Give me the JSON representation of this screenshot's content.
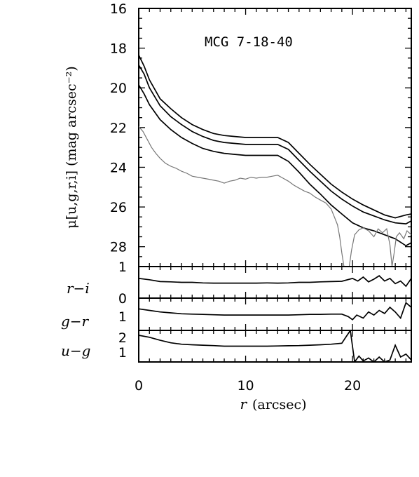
{
  "chart_data": [
    {
      "type": "line",
      "title": "MCG 7-18-40",
      "ylabel": "μ[u,g,r,i] (mag arcsec⁻²)",
      "xlim": [
        0,
        25.5
      ],
      "ylim": [
        16,
        29
      ],
      "y_inverted": true,
      "yticks": [
        16,
        18,
        20,
        22,
        24,
        26,
        28
      ],
      "ytick_labels": [
        "16",
        "18",
        "20",
        "22",
        "24",
        "26",
        "28"
      ],
      "series": [
        {
          "color": "#000000",
          "x": [
            0,
            0.5,
            1,
            2,
            3,
            4,
            5,
            6,
            7,
            8,
            9,
            10,
            11,
            12,
            13,
            14,
            15,
            16,
            17,
            18,
            19,
            20,
            21,
            22,
            23,
            24,
            25,
            25.5
          ],
          "y": [
            18.35,
            18.9,
            19.6,
            20.55,
            21.05,
            21.5,
            21.85,
            22.1,
            22.3,
            22.4,
            22.45,
            22.5,
            22.5,
            22.5,
            22.5,
            22.75,
            23.3,
            23.85,
            24.35,
            24.85,
            25.25,
            25.6,
            25.9,
            26.15,
            26.4,
            26.55,
            26.4,
            26.35
          ]
        },
        {
          "color": "#000000",
          "x": [
            0,
            0.5,
            1,
            2,
            3,
            4,
            5,
            6,
            7,
            8,
            9,
            10,
            11,
            12,
            13,
            14,
            15,
            16,
            17,
            18,
            19,
            20,
            21,
            22,
            23,
            24,
            25,
            25.5
          ],
          "y": [
            18.85,
            19.3,
            20.0,
            20.9,
            21.45,
            21.85,
            22.2,
            22.45,
            22.65,
            22.75,
            22.8,
            22.85,
            22.85,
            22.85,
            22.85,
            23.1,
            23.65,
            24.2,
            24.7,
            25.2,
            25.6,
            25.95,
            26.25,
            26.45,
            26.65,
            26.8,
            26.85,
            26.7
          ]
        },
        {
          "color": "#000000",
          "x": [
            0,
            0.5,
            1,
            2,
            3,
            4,
            5,
            6,
            7,
            8,
            9,
            10,
            11,
            12,
            13,
            14,
            15,
            16,
            17,
            18,
            19,
            20,
            21,
            22,
            23,
            24,
            25,
            25.5
          ],
          "y": [
            19.85,
            20.3,
            20.85,
            21.6,
            22.1,
            22.5,
            22.8,
            23.05,
            23.2,
            23.3,
            23.35,
            23.4,
            23.4,
            23.4,
            23.4,
            23.7,
            24.25,
            24.85,
            25.35,
            25.9,
            26.35,
            26.8,
            27.05,
            27.2,
            27.4,
            27.6,
            27.95,
            27.8
          ]
        },
        {
          "color": "#777777",
          "x": [
            0,
            0.4,
            0.8,
            1.2,
            1.6,
            2,
            2.5,
            3,
            3.5,
            4,
            4.5,
            5,
            5.5,
            6,
            6.5,
            7,
            7.5,
            8,
            8.5,
            9,
            9.5,
            10,
            10.5,
            11,
            11.5,
            12,
            12.5,
            13,
            13.5,
            14,
            14.5,
            15,
            15.5,
            16,
            16.5,
            17,
            17.5,
            18,
            18.3,
            18.6,
            18.8,
            19.0,
            19.2
          ],
          "y": [
            21.95,
            22.2,
            22.6,
            23.0,
            23.3,
            23.55,
            23.8,
            23.95,
            24.05,
            24.2,
            24.3,
            24.45,
            24.5,
            24.55,
            24.6,
            24.65,
            24.7,
            24.8,
            24.7,
            24.65,
            24.55,
            24.6,
            24.5,
            24.55,
            24.5,
            24.5,
            24.45,
            24.4,
            24.55,
            24.7,
            24.9,
            25.05,
            25.2,
            25.3,
            25.5,
            25.65,
            25.8,
            26.1,
            26.5,
            26.9,
            27.5,
            28.3,
            29
          ]
        },
        {
          "color": "#777777",
          "x": [
            19.7,
            19.9,
            20.2,
            20.6,
            21.0,
            21.5,
            22.0,
            22.4,
            22.8,
            23.2,
            23.5,
            23.7,
            23.9,
            24.1,
            24.4,
            24.8,
            25.1,
            25.5
          ],
          "y": [
            29,
            28.2,
            27.4,
            27.15,
            27.05,
            27.2,
            27.5,
            27.1,
            27.3,
            27.1,
            27.9,
            29,
            28.3,
            27.5,
            27.3,
            27.6,
            27.2,
            27.4
          ]
        }
      ]
    },
    {
      "type": "line",
      "ylabel": "r−i",
      "xlim": [
        0,
        25.5
      ],
      "ylim": [
        -0.2,
        1.0
      ],
      "ytick_labels": [
        "1",
        "0"
      ],
      "series": [
        {
          "color": "#000000",
          "x": [
            0,
            1,
            2,
            3,
            4,
            5,
            6,
            7,
            8,
            9,
            10,
            11,
            12,
            13,
            14,
            15,
            16,
            17,
            18,
            19,
            20,
            20.5,
            21,
            21.5,
            22,
            22.5,
            23,
            23.5,
            24,
            24.5,
            25,
            25.5
          ],
          "y": [
            0.55,
            0.5,
            0.43,
            0.42,
            0.4,
            0.4,
            0.38,
            0.37,
            0.37,
            0.37,
            0.37,
            0.37,
            0.38,
            0.37,
            0.38,
            0.4,
            0.4,
            0.42,
            0.43,
            0.44,
            0.55,
            0.45,
            0.6,
            0.42,
            0.52,
            0.65,
            0.45,
            0.55,
            0.35,
            0.45,
            0.25,
            0.55
          ]
        }
      ]
    },
    {
      "type": "line",
      "ylabel": "g−r",
      "xlim": [
        0,
        25.5
      ],
      "ylim": [
        0.3,
        1.35
      ],
      "ytick_labels": [
        "1"
      ],
      "series": [
        {
          "color": "#000000",
          "x": [
            0,
            1,
            2,
            3,
            4,
            5,
            6,
            7,
            8,
            9,
            10,
            11,
            12,
            13,
            14,
            15,
            16,
            17,
            18,
            19,
            19.6,
            20,
            20.4,
            21,
            21.5,
            22,
            22.5,
            23,
            23.5,
            24,
            24.5,
            25,
            25.5
          ],
          "y": [
            1.0,
            0.95,
            0.9,
            0.87,
            0.84,
            0.83,
            0.82,
            0.81,
            0.8,
            0.8,
            0.8,
            0.8,
            0.8,
            0.8,
            0.8,
            0.81,
            0.82,
            0.82,
            0.83,
            0.83,
            0.75,
            0.65,
            0.8,
            0.7,
            0.9,
            0.8,
            0.95,
            0.85,
            1.05,
            0.9,
            0.7,
            1.2,
            1.05
          ]
        }
      ]
    },
    {
      "type": "line",
      "ylabel": "u−g",
      "xlim": [
        0,
        25.5
      ],
      "ylim": [
        0.65,
        2.25
      ],
      "ytick_labels": [
        "2",
        "1"
      ],
      "series": [
        {
          "color": "#000000",
          "x": [
            0,
            1,
            2,
            3,
            4,
            5,
            6,
            7,
            8,
            9,
            10,
            11,
            12,
            13,
            14,
            15,
            16,
            17,
            18,
            19,
            19.8,
            20.2,
            20.6,
            21,
            21.5,
            22,
            22.5,
            23,
            23.5,
            24,
            24.5,
            25,
            25.5
          ],
          "y": [
            2.0,
            1.9,
            1.75,
            1.62,
            1.55,
            1.52,
            1.5,
            1.48,
            1.45,
            1.45,
            1.45,
            1.45,
            1.45,
            1.46,
            1.47,
            1.48,
            1.5,
            1.52,
            1.55,
            1.6,
            2.25,
            0.65,
            0.95,
            0.7,
            0.85,
            0.65,
            0.9,
            0.65,
            0.75,
            1.5,
            0.9,
            1.05,
            0.75
          ]
        }
      ]
    }
  ],
  "xaxis": {
    "label": "r (arcsec)",
    "label_italic": "r",
    "label_rest": "(arcsec)",
    "ticks": [
      0,
      10,
      20
    ],
    "tick_labels": [
      "0",
      "10",
      "20"
    ]
  }
}
